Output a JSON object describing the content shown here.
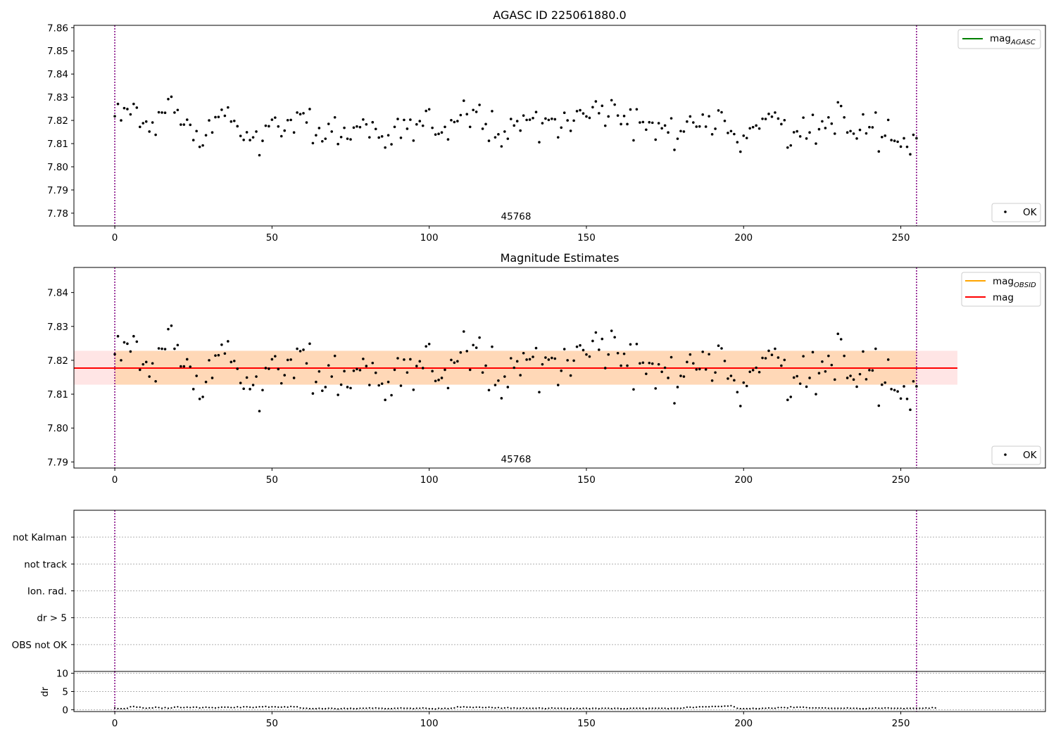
{
  "chart_data": [
    {
      "type": "scatter",
      "title": "AGASC ID 225061880.0",
      "annotation": "45768",
      "xlim": [
        -13,
        296
      ],
      "ylim": [
        7.7745,
        7.861
      ],
      "xticks": [
        0,
        50,
        100,
        150,
        200,
        250
      ],
      "yticks": [
        7.78,
        7.79,
        7.8,
        7.81,
        7.82,
        7.83,
        7.84,
        7.85,
        7.86
      ],
      "ytick_labels": [
        "7.78",
        "7.79",
        "7.80",
        "7.81",
        "7.82",
        "7.83",
        "7.84",
        "7.85",
        "7.86"
      ],
      "vlines": [
        0,
        255
      ],
      "legend_lines": [
        {
          "label": "mag",
          "sub": "AGASC",
          "color": "#008000"
        }
      ],
      "legend_points": [
        {
          "label": "OK",
          "color": "#000000"
        }
      ]
    },
    {
      "type": "scatter",
      "title": "Magnitude Estimates",
      "annotation": "45768",
      "xlim": [
        -13,
        296
      ],
      "ylim": [
        7.7882,
        7.8474
      ],
      "xticks": [
        0,
        50,
        100,
        150,
        200,
        250
      ],
      "yticks": [
        7.79,
        7.8,
        7.81,
        7.82,
        7.83,
        7.84
      ],
      "ytick_labels": [
        "7.79",
        "7.80",
        "7.81",
        "7.82",
        "7.83",
        "7.84"
      ],
      "vlines": [
        0,
        255
      ],
      "mag_mean": 7.8177,
      "mag_band": [
        7.8128,
        7.8228
      ],
      "mag_x_range": [
        -13,
        268
      ],
      "obsid_band": [
        7.8128,
        7.8228
      ],
      "obsid_x_range": [
        0,
        255
      ],
      "legend_lines": [
        {
          "label": "mag",
          "sub": "OBSID",
          "color": "#ffa500"
        },
        {
          "label": "mag",
          "sub": "",
          "color": "#ff0000"
        }
      ],
      "legend_points": [
        {
          "label": "OK",
          "color": "#000000"
        }
      ]
    },
    {
      "type": "scatter",
      "flag_labels": [
        "not Kalman",
        "not track",
        "Ion. rad.",
        "dr > 5",
        "OBS not OK"
      ],
      "xlim": [
        -13,
        296
      ],
      "vlines": [
        0,
        255
      ]
    },
    {
      "type": "scatter",
      "ylabel": "dr",
      "xlim": [
        -13,
        296
      ],
      "ylim": [
        -0.5,
        10.5
      ],
      "yticks": [
        0,
        5,
        10
      ],
      "ytick_labels": [
        "0",
        "5",
        "10"
      ],
      "xticks": [
        0,
        50,
        100,
        150,
        200,
        250
      ],
      "vlines": [
        0,
        255
      ]
    }
  ],
  "series": {
    "mag": [
      7.8218,
      7.8271,
      7.82,
      7.8253,
      7.8249,
      7.8226,
      7.8271,
      7.8255,
      7.8172,
      7.8188,
      7.8195,
      7.8152,
      7.8191,
      7.8138,
      7.8235,
      7.8234,
      7.8233,
      7.8292,
      7.8302,
      7.8234,
      7.8245,
      7.8182,
      7.8182,
      7.8203,
      7.8181,
      7.8115,
      7.8154,
      7.8086,
      7.8092,
      7.8136,
      7.82,
      7.8148,
      7.8214,
      7.8215,
      7.8246,
      7.822,
      7.8256,
      7.8195,
      7.8198,
      7.8175,
      7.8133,
      7.8116,
      7.8149,
      7.8115,
      7.8127,
      7.8152,
      7.805,
      7.8112,
      7.8177,
      7.8175,
      7.8203,
      7.8212,
      7.8174,
      7.8132,
      7.8156,
      7.8201,
      7.8202,
      7.8148,
      7.8234,
      7.8227,
      7.8231,
      7.8191,
      7.8249,
      7.8102,
      7.8136,
      7.8167,
      7.811,
      7.8121,
      7.8185,
      7.8152,
      7.8213,
      7.8098,
      7.8128,
      7.8168,
      7.8121,
      7.8118,
      7.8169,
      7.8174,
      7.8171,
      7.8204,
      7.8183,
      7.8127,
      7.8192,
      7.8163,
      7.8126,
      7.8131,
      7.8083,
      7.8136,
      7.8097,
      7.8172,
      7.8206,
      7.8125,
      7.8202,
      7.8164,
      7.8203,
      7.8113,
      7.8183,
      7.8197,
      7.8177,
      7.8241,
      7.8248,
      7.8168,
      7.8139,
      7.8142,
      7.8148,
      7.8172,
      7.8118,
      7.8201,
      7.8193,
      7.8197,
      7.8223,
      7.8285,
      7.8227,
      7.8172,
      7.8245,
      7.8237,
      7.8267,
      7.8164,
      7.8184,
      7.8112,
      7.824,
      7.8127,
      7.814,
      7.8088,
      7.8152,
      7.8121,
      7.8206,
      7.8178,
      7.8197,
      7.8156,
      7.8221,
      7.8202,
      7.8203,
      7.821,
      7.8236,
      7.8106,
      7.8188,
      7.8208,
      7.8202,
      7.8207,
      7.8205,
      7.8127,
      7.8169,
      7.8233,
      7.82,
      7.8155,
      7.8199,
      7.824,
      7.8244,
      7.823,
      7.8217,
      7.8211,
      7.8257,
      7.8282,
      7.8231,
      7.8263,
      7.8177,
      7.8217,
      7.8287,
      7.8268,
      7.8221,
      7.8184,
      7.8219,
      7.8184,
      7.8247,
      7.8114,
      7.8248,
      7.8191,
      7.8193,
      7.816,
      7.8192,
      7.819,
      7.8117,
      7.8188,
      7.8166,
      7.8178,
      7.8148,
      7.8209,
      7.8073,
      7.8121,
      7.8154,
      7.8152,
      7.8195,
      7.8217,
      7.8191,
      7.8173,
      7.8174,
      7.8225,
      7.8173,
      7.8218,
      7.814,
      7.8164,
      7.8243,
      7.8235,
      7.8198,
      7.8146,
      7.8154,
      7.8141,
      7.8106,
      7.8065,
      7.8134,
      7.8124,
      7.8166,
      7.8171,
      7.8178,
      7.8165,
      7.8207,
      7.8206,
      7.8228,
      7.8216,
      7.8234,
      7.8208,
      7.8184,
      7.8201,
      7.8083,
      7.8092,
      7.8149,
      7.8153,
      7.8131,
      7.8212,
      7.8122,
      7.8148,
      7.8224,
      7.81,
      7.8162,
      7.8196,
      7.8167,
      7.8213,
      7.8186,
      7.8143,
      7.8278,
      7.8262,
      7.8213,
      7.8148,
      7.8154,
      7.8143,
      7.8122,
      7.8159,
      7.8226,
      7.8144,
      7.8171,
      7.817,
      7.8234,
      7.8066,
      7.8128,
      7.8134,
      7.8202,
      7.8115,
      7.8112,
      7.8108,
      7.8087,
      7.8123,
      7.8086,
      7.8054,
      7.8138,
      7.8123
    ],
    "dr": [
      0.5,
      0.3,
      0.3,
      0.3,
      0.4,
      0.8,
      0.9,
      0.7,
      0.7,
      0.5,
      0.4,
      0.5,
      0.5,
      0.7,
      0.6,
      0.4,
      0.6,
      0.4,
      0.5,
      0.7,
      0.8,
      0.6,
      0.6,
      0.7,
      0.6,
      0.7,
      0.7,
      0.5,
      0.6,
      0.7,
      0.6,
      0.6,
      0.5,
      0.6,
      0.7,
      0.7,
      0.7,
      0.6,
      0.6,
      0.8,
      0.6,
      0.8,
      0.8,
      0.7,
      0.6,
      0.7,
      0.8,
      0.8,
      0.9,
      0.7,
      0.8,
      0.8,
      0.7,
      0.7,
      0.8,
      0.7,
      0.9,
      0.8,
      0.8,
      0.5,
      0.4,
      0.4,
      0.3,
      0.3,
      0.3,
      0.4,
      0.3,
      0.3,
      0.4,
      0.4,
      0.3,
      0.2,
      0.3,
      0.4,
      0.3,
      0.4,
      0.3,
      0.3,
      0.4,
      0.4,
      0.4,
      0.5,
      0.4,
      0.5,
      0.4,
      0.4,
      0.3,
      0.3,
      0.3,
      0.4,
      0.4,
      0.5,
      0.4,
      0.4,
      0.4,
      0.3,
      0.4,
      0.4,
      0.5,
      0.4,
      0.3,
      0.3,
      0.2,
      0.4,
      0.3,
      0.4,
      0.3,
      0.4,
      0.5,
      0.8,
      0.7,
      0.8,
      0.7,
      0.7,
      0.6,
      0.7,
      0.7,
      0.6,
      0.6,
      0.7,
      0.6,
      0.5,
      0.6,
      0.4,
      0.5,
      0.6,
      0.4,
      0.5,
      0.4,
      0.4,
      0.5,
      0.4,
      0.4,
      0.4,
      0.4,
      0.5,
      0.4,
      0.3,
      0.4,
      0.5,
      0.4,
      0.4,
      0.4,
      0.4,
      0.3,
      0.4,
      0.3,
      0.4,
      0.3,
      0.4,
      0.4,
      0.3,
      0.4,
      0.4,
      0.3,
      0.4,
      0.4,
      0.4,
      0.3,
      0.4,
      0.4,
      0.3,
      0.3,
      0.3,
      0.4,
      0.4,
      0.4,
      0.4,
      0.4,
      0.3,
      0.4,
      0.4,
      0.4,
      0.4,
      0.4,
      0.4,
      0.3,
      0.4,
      0.4,
      0.4,
      0.4,
      0.5,
      0.7,
      0.7,
      0.6,
      0.7,
      0.8,
      0.8,
      0.8,
      0.8,
      0.9,
      0.9,
      0.9,
      0.9,
      1.0,
      1.0,
      1.1,
      0.8,
      0.4,
      0.3,
      0.3,
      0.3,
      0.3,
      0.4,
      0.3,
      0.3,
      0.4,
      0.4,
      0.5,
      0.4,
      0.4,
      0.6,
      0.6,
      0.6,
      0.5,
      0.8,
      0.6,
      0.7,
      0.7,
      0.7,
      0.6,
      0.5,
      0.5,
      0.5,
      0.5,
      0.5,
      0.5,
      0.4,
      0.4,
      0.4,
      0.4,
      0.4,
      0.4,
      0.5,
      0.4,
      0.4,
      0.4,
      0.3,
      0.3,
      0.3,
      0.4,
      0.4,
      0.5,
      0.4,
      0.4,
      0.5,
      0.5,
      0.4,
      0.4,
      0.4,
      0.4,
      0.3,
      0.4,
      0.4,
      0.4,
      0.4,
      0.4,
      0.4,
      0.5,
      0.4,
      0.6,
      0.5
    ]
  }
}
